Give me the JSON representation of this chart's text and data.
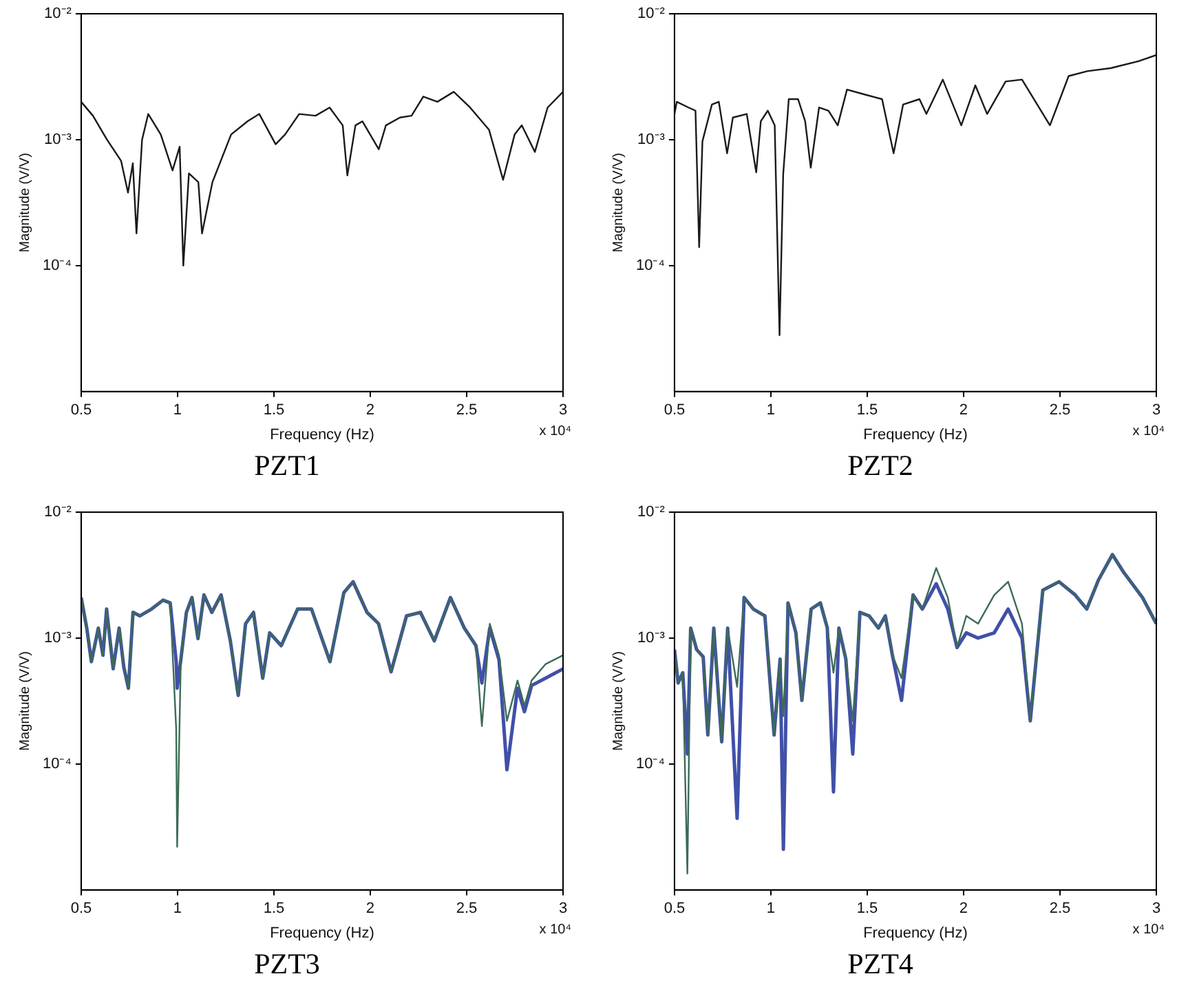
{
  "chart_data": [
    {
      "type": "line",
      "title": "PZT1",
      "xlabel": "Frequency (Hz)",
      "ylabel": "Magnitude (V/V)",
      "annotations": [
        "x 10⁴"
      ],
      "log": "y",
      "grid": false,
      "xlim": [
        0.5,
        3
      ],
      "xticks": [
        0.5,
        1,
        1.5,
        2,
        2.5,
        3
      ],
      "ylim": [
        1e-05,
        0.01
      ],
      "yticks": [
        {
          "value": 0.01,
          "label": "10⁻²"
        },
        {
          "value": 0.001,
          "label": "10⁻³"
        },
        {
          "value": 0.0001,
          "label": "10⁻⁴"
        }
      ],
      "x": [
        0.5,
        0.561,
        0.634,
        0.707,
        0.743,
        0.768,
        0.787,
        0.816,
        0.848,
        0.913,
        0.974,
        1.011,
        1.03,
        1.059,
        1.108,
        1.127,
        1.181,
        1.278,
        1.363,
        1.424,
        1.509,
        1.558,
        1.631,
        1.716,
        1.789,
        1.857,
        1.881,
        1.923,
        1.959,
        2.044,
        2.081,
        2.154,
        2.214,
        2.275,
        2.348,
        2.433,
        2.518,
        2.616,
        2.689,
        2.749,
        2.786,
        2.854,
        2.92,
        3.0
      ],
      "series": [
        {
          "color": "#1a1a1a",
          "values": [
            0.002,
            0.00155,
            0.001,
            0.00068,
            0.00038,
            0.00065,
            0.00018,
            0.001,
            0.0016,
            0.0011,
            0.00057,
            0.00088,
            0.0001,
            0.00054,
            0.00046,
            0.00018,
            0.00046,
            0.0011,
            0.0014,
            0.0016,
            0.00092,
            0.0011,
            0.0016,
            0.00155,
            0.0018,
            0.0013,
            0.00052,
            0.0013,
            0.0014,
            0.00084,
            0.0013,
            0.0015,
            0.00155,
            0.0022,
            0.002,
            0.0024,
            0.0018,
            0.0012,
            0.00048,
            0.0011,
            0.0013,
            0.0008,
            0.0018,
            0.0024
          ]
        }
      ]
    },
    {
      "type": "line",
      "title": "PZT2",
      "xlabel": "Frequency (Hz)",
      "ylabel": "Magnitude (V/V)",
      "annotations": [
        "x 10⁴"
      ],
      "log": "y",
      "grid": false,
      "xlim": [
        0.5,
        3
      ],
      "xticks": [
        0.5,
        1,
        1.5,
        2,
        2.5,
        3
      ],
      "ylim": [
        1e-05,
        0.01
      ],
      "yticks": [
        {
          "value": 0.01,
          "label": "10⁻²"
        },
        {
          "value": 0.001,
          "label": "10⁻³"
        },
        {
          "value": 0.0001,
          "label": "10⁻⁴"
        }
      ],
      "x": [
        0.5,
        0.512,
        0.573,
        0.609,
        0.628,
        0.645,
        0.694,
        0.73,
        0.773,
        0.803,
        0.875,
        0.924,
        0.948,
        0.984,
        1.02,
        1.045,
        1.064,
        1.093,
        1.141,
        1.178,
        1.207,
        1.25,
        1.299,
        1.347,
        1.395,
        1.48,
        1.577,
        1.637,
        1.686,
        1.771,
        1.807,
        1.892,
        1.988,
        2.061,
        2.122,
        2.218,
        2.303,
        2.448,
        2.545,
        2.642,
        2.763,
        2.908,
        3.0
      ],
      "series": [
        {
          "color": "#1a1a1a",
          "values": [
            0.0016,
            0.002,
            0.0018,
            0.0017,
            0.00014,
            0.00097,
            0.0019,
            0.002,
            0.00078,
            0.0015,
            0.0016,
            0.00055,
            0.0014,
            0.0017,
            0.0013,
            2.8e-05,
            0.00053,
            0.0021,
            0.0021,
            0.0014,
            0.0006,
            0.0018,
            0.0017,
            0.0013,
            0.0025,
            0.0023,
            0.0021,
            0.00078,
            0.0019,
            0.0021,
            0.0016,
            0.003,
            0.0013,
            0.0027,
            0.0016,
            0.0029,
            0.003,
            0.0013,
            0.0032,
            0.0035,
            0.0037,
            0.0042,
            0.0047
          ]
        }
      ]
    },
    {
      "type": "line",
      "title": "PZT3",
      "xlabel": "Frequency (Hz)",
      "ylabel": "Magnitude (V/V)",
      "annotations": [
        "x 10⁴"
      ],
      "log": "y",
      "grid": false,
      "xlim": [
        0.5,
        3
      ],
      "xticks": [
        0.5,
        1,
        1.5,
        2,
        2.5,
        3
      ],
      "ylim": [
        1e-05,
        0.01
      ],
      "yticks": [
        {
          "value": 0.01,
          "label": "10⁻²"
        },
        {
          "value": 0.001,
          "label": "10⁻³"
        },
        {
          "value": 0.0001,
          "label": "10⁻⁴"
        }
      ],
      "x": [
        0.5,
        0.529,
        0.553,
        0.589,
        0.613,
        0.632,
        0.666,
        0.697,
        0.721,
        0.745,
        0.769,
        0.805,
        0.865,
        0.925,
        0.962,
        0.993,
        0.998,
        1.017,
        1.046,
        1.075,
        1.106,
        1.137,
        1.178,
        1.226,
        1.274,
        1.315,
        1.353,
        1.394,
        1.442,
        1.478,
        1.538,
        1.623,
        1.695,
        1.791,
        1.863,
        1.911,
        1.983,
        2.043,
        2.108,
        2.188,
        2.26,
        2.332,
        2.416,
        2.488,
        2.548,
        2.579,
        2.62,
        2.668,
        2.709,
        2.764,
        2.8,
        2.837,
        2.909,
        3.0
      ],
      "series": [
        {
          "color": "#3d6b55",
          "values": [
            0.0021,
            0.0012,
            0.00065,
            0.0012,
            0.00073,
            0.0017,
            0.00057,
            0.0012,
            0.00059,
            0.0004,
            0.0016,
            0.0015,
            0.0017,
            0.002,
            0.0019,
            0.00019,
            2.2e-05,
            0.00067,
            0.0016,
            0.0021,
            0.00099,
            0.0022,
            0.0016,
            0.0022,
            0.00095,
            0.00035,
            0.0013,
            0.0016,
            0.00048,
            0.0011,
            0.00087,
            0.0017,
            0.0017,
            0.00065,
            0.0023,
            0.0028,
            0.0016,
            0.0013,
            0.00054,
            0.0015,
            0.0016,
            0.00095,
            0.0021,
            0.0012,
            0.00087,
            0.0002,
            0.0013,
            0.00073,
            0.00022,
            0.00046,
            0.00029,
            0.00046,
            0.00062,
            0.00073
          ]
        },
        {
          "color": "#4050a8",
          "values": [
            0.0021,
            0.0012,
            0.00065,
            0.0012,
            0.00073,
            0.0017,
            0.00057,
            0.0012,
            0.00059,
            0.0004,
            0.0016,
            0.0015,
            0.0017,
            0.002,
            0.0019,
            0.00065,
            0.0004,
            0.00067,
            0.0016,
            0.0021,
            0.00099,
            0.0022,
            0.0016,
            0.0022,
            0.00095,
            0.00035,
            0.0013,
            0.0016,
            0.00048,
            0.0011,
            0.00087,
            0.0017,
            0.0017,
            0.00065,
            0.0023,
            0.0028,
            0.0016,
            0.0013,
            0.00054,
            0.0015,
            0.0016,
            0.00095,
            0.0021,
            0.0012,
            0.00087,
            0.00044,
            0.0012,
            0.00067,
            9e-05,
            0.0004,
            0.00026,
            0.00042,
            0.00048,
            0.00057
          ]
        }
      ]
    },
    {
      "type": "line",
      "title": "PZT4",
      "xlabel": "Frequency (Hz)",
      "ylabel": "Magnitude (V/V)",
      "annotations": [
        "x 10⁴"
      ],
      "log": "y",
      "grid": false,
      "xlim": [
        0.5,
        3
      ],
      "xticks": [
        0.5,
        1,
        1.5,
        2,
        2.5,
        3
      ],
      "ylim": [
        1e-05,
        0.01
      ],
      "yticks": [
        {
          "value": 0.01,
          "label": "10⁻²"
        },
        {
          "value": 0.001,
          "label": "10⁻³"
        },
        {
          "value": 0.0001,
          "label": "10⁻⁴"
        }
      ],
      "x": [
        0.5,
        0.519,
        0.543,
        0.567,
        0.584,
        0.615,
        0.649,
        0.673,
        0.704,
        0.745,
        0.776,
        0.825,
        0.861,
        0.909,
        0.969,
        1.017,
        1.048,
        1.065,
        1.089,
        1.13,
        1.161,
        1.209,
        1.257,
        1.293,
        1.325,
        1.353,
        1.389,
        1.425,
        1.462,
        1.51,
        1.558,
        1.594,
        1.63,
        1.678,
        1.738,
        1.786,
        1.858,
        1.918,
        1.966,
        2.014,
        2.075,
        2.159,
        2.231,
        2.303,
        2.346,
        2.411,
        2.495,
        2.579,
        2.639,
        2.7,
        2.772,
        2.832,
        2.928,
        3.0
      ],
      "series": [
        {
          "color": "#3d6b55",
          "values": [
            0.00081,
            0.00044,
            0.00053,
            1.35e-05,
            0.0012,
            0.00081,
            0.00071,
            0.00017,
            0.0012,
            0.00015,
            0.0012,
            0.00041,
            0.0021,
            0.0017,
            0.0015,
            0.00017,
            0.00068,
            0.00024,
            0.0019,
            0.0011,
            0.00032,
            0.0017,
            0.0019,
            0.0012,
            0.00053,
            0.0012,
            0.00068,
            0.00022,
            0.0016,
            0.0015,
            0.0012,
            0.0015,
            0.00074,
            0.00048,
            0.0022,
            0.0017,
            0.0036,
            0.0021,
            0.00084,
            0.0015,
            0.0013,
            0.0022,
            0.0028,
            0.0013,
            0.00022,
            0.0024,
            0.0028,
            0.0022,
            0.0017,
            0.0029,
            0.0046,
            0.0033,
            0.0021,
            0.0013
          ]
        },
        {
          "color": "#4050a8",
          "values": [
            0.00081,
            0.00044,
            0.00053,
            0.00012,
            0.0012,
            0.00081,
            0.00071,
            0.00017,
            0.0012,
            0.00015,
            0.0012,
            3.7e-05,
            0.0021,
            0.0017,
            0.0015,
            0.00017,
            0.00068,
            2.1e-05,
            0.0019,
            0.0011,
            0.00032,
            0.0017,
            0.0019,
            0.0012,
            6e-05,
            0.0012,
            0.00068,
            0.00012,
            0.0016,
            0.0015,
            0.0012,
            0.0015,
            0.00074,
            0.00032,
            0.0022,
            0.0017,
            0.0027,
            0.0017,
            0.00084,
            0.0011,
            0.001,
            0.0011,
            0.0017,
            0.001,
            0.00022,
            0.0024,
            0.0028,
            0.0022,
            0.0017,
            0.0029,
            0.0046,
            0.0033,
            0.0021,
            0.0013
          ]
        }
      ]
    }
  ]
}
